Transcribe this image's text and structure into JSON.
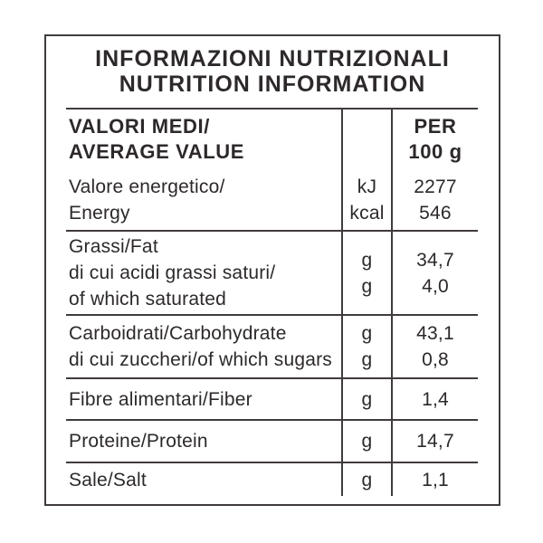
{
  "label": {
    "title_line1": "INFORMAZIONI NUTRIZIONALI",
    "title_line2": "NUTRITION INFORMATION",
    "header": {
      "label_line1": "VALORI MEDI/",
      "label_line2": "AVERAGE VALUE",
      "value_line1": "PER",
      "value_line2": "100 g"
    },
    "rows": [
      {
        "label_lines": [
          "Valore energetico/",
          "Energy"
        ],
        "units": [
          "kJ",
          "kcal"
        ],
        "values": [
          "2277",
          "546"
        ]
      },
      {
        "label_lines": [
          "Grassi/Fat",
          "di cui acidi grassi saturi/",
          "of which saturated"
        ],
        "units": [
          "g",
          "g"
        ],
        "values": [
          "34,7",
          "4,0"
        ]
      },
      {
        "label_lines": [
          "Carboidrati/Carbohydrate",
          "di cui zuccheri/of which sugars"
        ],
        "units": [
          "g",
          "g"
        ],
        "values": [
          "43,1",
          "0,8"
        ]
      },
      {
        "label_lines": [
          "Fibre alimentari/Fiber"
        ],
        "units": [
          "g"
        ],
        "values": [
          "1,4"
        ]
      },
      {
        "label_lines": [
          "Proteine/Protein"
        ],
        "units": [
          "g"
        ],
        "values": [
          "14,7"
        ]
      },
      {
        "label_lines": [
          "Sale/Salt"
        ],
        "units": [
          "g"
        ],
        "values": [
          "1,1"
        ]
      }
    ]
  },
  "colors": {
    "text": "#2d292a",
    "rule": "#403b3c",
    "background": "#ffffff"
  }
}
